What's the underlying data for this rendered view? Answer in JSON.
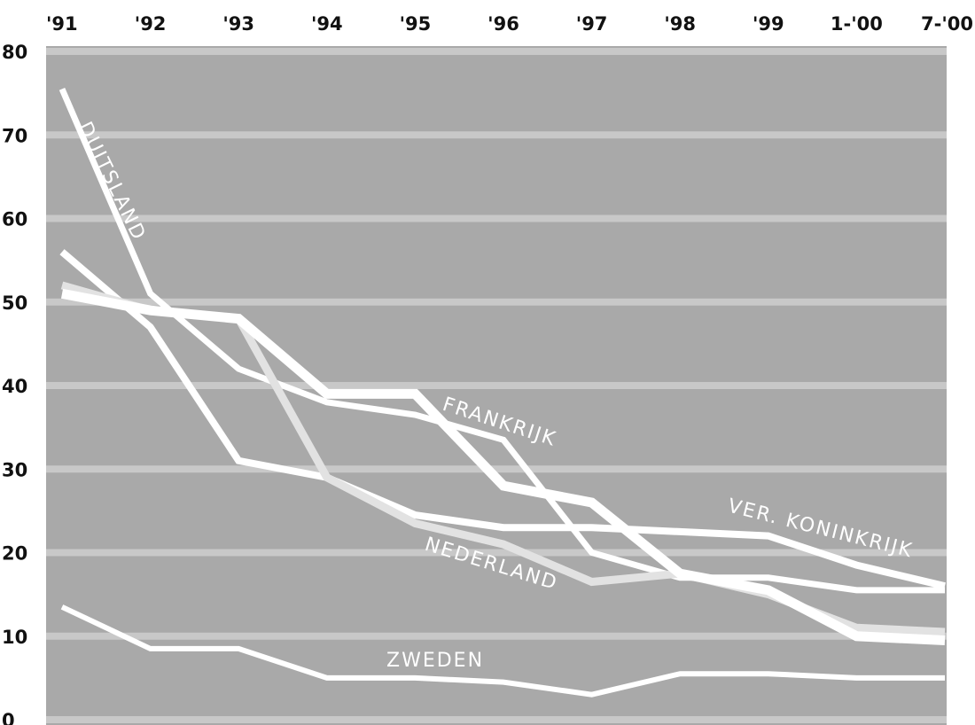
{
  "chart_data": {
    "type": "line",
    "categories": [
      "'91",
      "'92",
      "'93",
      "'94",
      "'95",
      "'96",
      "'97",
      "'98",
      "'99",
      "1-'00",
      "7-'00"
    ],
    "ylim": [
      0,
      80
    ],
    "yticks": [
      0,
      10,
      20,
      30,
      40,
      50,
      60,
      70,
      80
    ],
    "grid": true,
    "colors": {
      "plot_bg": "#a9a9a9",
      "grid": "#c8c8c8",
      "line_white": "#ffffff",
      "line_light": "#e2e2e2"
    },
    "series": [
      {
        "name": "DUITSLAND",
        "values": [
          75.5,
          51,
          42,
          38,
          36.5,
          33.5,
          20,
          17,
          17,
          15.5,
          15.5
        ]
      },
      {
        "name": "FRANKRIJK",
        "values": [
          51,
          49,
          48,
          39,
          39,
          28,
          26,
          17.5,
          15.5,
          10,
          9.5
        ]
      },
      {
        "name": "VER. KONINKRIJK",
        "values": [
          56,
          47,
          31,
          29,
          24.5,
          23,
          23,
          22.5,
          22,
          18.5,
          16
        ]
      },
      {
        "name": "NEDERLAND",
        "values": [
          52,
          49,
          48,
          29,
          23.5,
          21,
          16.5,
          17.5,
          15,
          11,
          10.5
        ]
      },
      {
        "name": "ZWEDEN",
        "values": [
          13.5,
          8.5,
          8.5,
          5,
          5,
          4.5,
          3,
          5.5,
          5.5,
          5,
          5
        ]
      }
    ]
  }
}
